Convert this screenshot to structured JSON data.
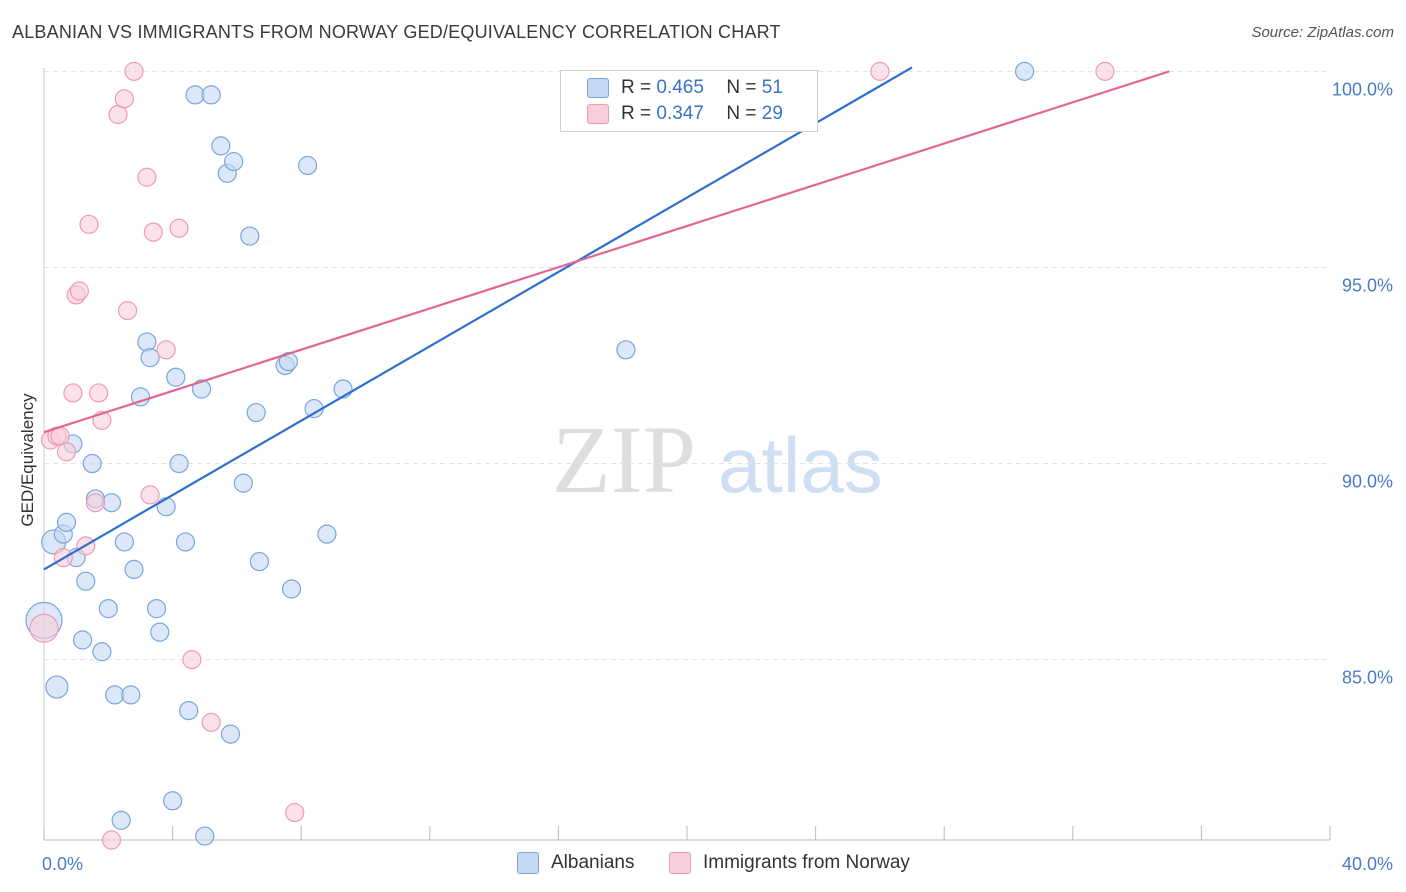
{
  "header": {
    "title": "ALBANIAN VS IMMIGRANTS FROM NORWAY GED/EQUIVALENCY CORRELATION CHART",
    "source": "Source: ZipAtlas.com"
  },
  "watermark": {
    "zip": "ZIP",
    "atlas": "atlas"
  },
  "legend": {
    "r_label": "R =",
    "n_label": "N =",
    "rows": [
      {
        "r": "0.465",
        "n": "51"
      },
      {
        "r": "0.347",
        "n": "29"
      }
    ]
  },
  "colors": {
    "blue_fill": "#c5d9f3",
    "blue_stroke": "#7aa6dd",
    "blue_line": "#2c6fcc",
    "pink_fill": "#f9cedb",
    "pink_stroke": "#ef9ab5",
    "pink_line": "#e26691",
    "grid": "#e2e2e2",
    "tick_text": "#4a7cc6"
  },
  "chart_data": {
    "type": "scatter",
    "title": "ALBANIAN VS IMMIGRANTS FROM NORWAY GED/EQUIVALENCY CORRELATION CHART",
    "xlabel": "",
    "ylabel": "GED/Equivalency",
    "xlim": [
      0,
      40
    ],
    "ylim": [
      80.4,
      100.8
    ],
    "x_tick_labels": [
      {
        "value": 0,
        "label": "0.0%"
      },
      {
        "value": 40,
        "label": "40.0%"
      }
    ],
    "y_tick_labels": [
      {
        "value": 85,
        "label": "85.0%"
      },
      {
        "value": 90,
        "label": "90.0%"
      },
      {
        "value": 95,
        "label": "95.0%"
      },
      {
        "value": 100,
        "label": "100.0%"
      }
    ],
    "y_gridlines": [
      85,
      90,
      95,
      100
    ],
    "x_minor_ticks": [
      0,
      4,
      8,
      12,
      16,
      20,
      24,
      28,
      32,
      36,
      40
    ],
    "series": [
      {
        "name": "Albanians",
        "color": "#7aa6dd",
        "points": [
          [
            0.0,
            86.0,
            18
          ],
          [
            0.3,
            88.0,
            12
          ],
          [
            0.4,
            84.3,
            11
          ],
          [
            0.6,
            88.2,
            9
          ],
          [
            0.7,
            88.5,
            9
          ],
          [
            0.9,
            90.5,
            9
          ],
          [
            1.0,
            87.6,
            9
          ],
          [
            1.2,
            85.5,
            9
          ],
          [
            1.3,
            87.0,
            9
          ],
          [
            1.5,
            90.0,
            9
          ],
          [
            1.6,
            89.1,
            9
          ],
          [
            1.8,
            85.2,
            9
          ],
          [
            2.0,
            86.3,
            9
          ],
          [
            2.1,
            89.0,
            9
          ],
          [
            2.2,
            84.1,
            9
          ],
          [
            2.4,
            80.9,
            9
          ],
          [
            2.5,
            88.0,
            9
          ],
          [
            2.7,
            84.1,
            9
          ],
          [
            2.8,
            87.3,
            9
          ],
          [
            3.0,
            91.7,
            9
          ],
          [
            3.2,
            93.1,
            9
          ],
          [
            3.3,
            92.7,
            9
          ],
          [
            3.5,
            86.3,
            9
          ],
          [
            3.6,
            85.7,
            9
          ],
          [
            3.8,
            88.9,
            9
          ],
          [
            4.0,
            81.4,
            9
          ],
          [
            4.1,
            92.2,
            9
          ],
          [
            4.2,
            90.0,
            9
          ],
          [
            4.4,
            88.0,
            9
          ],
          [
            4.5,
            83.7,
            9
          ],
          [
            4.7,
            99.4,
            9
          ],
          [
            4.9,
            91.9,
            9
          ],
          [
            5.0,
            80.5,
            9
          ],
          [
            5.2,
            99.4,
            9
          ],
          [
            5.5,
            98.1,
            9
          ],
          [
            5.7,
            97.4,
            9
          ],
          [
            5.8,
            83.1,
            9
          ],
          [
            5.9,
            97.7,
            9
          ],
          [
            6.2,
            89.5,
            9
          ],
          [
            6.4,
            95.8,
            9
          ],
          [
            6.6,
            91.3,
            9
          ],
          [
            6.7,
            87.5,
            9
          ],
          [
            7.5,
            92.5,
            9
          ],
          [
            7.6,
            92.6,
            9
          ],
          [
            7.7,
            86.8,
            9
          ],
          [
            8.2,
            97.6,
            9
          ],
          [
            8.4,
            91.4,
            9
          ],
          [
            8.8,
            88.2,
            9
          ],
          [
            9.3,
            91.9,
            9
          ],
          [
            18.1,
            92.9,
            9
          ],
          [
            30.5,
            100.0,
            9
          ]
        ]
      },
      {
        "name": "Immigrants from Norway",
        "color": "#ef9ab5",
        "points": [
          [
            0.0,
            85.8,
            14
          ],
          [
            0.2,
            90.6,
            9
          ],
          [
            0.4,
            90.7,
            9
          ],
          [
            0.5,
            90.7,
            9
          ],
          [
            0.6,
            87.6,
            9
          ],
          [
            0.7,
            90.3,
            9
          ],
          [
            0.9,
            91.8,
            9
          ],
          [
            1.0,
            94.3,
            9
          ],
          [
            1.1,
            94.4,
            9
          ],
          [
            1.3,
            87.9,
            9
          ],
          [
            1.4,
            96.1,
            9
          ],
          [
            1.6,
            89.0,
            9
          ],
          [
            1.7,
            91.8,
            9
          ],
          [
            1.8,
            91.1,
            9
          ],
          [
            2.1,
            80.4,
            9
          ],
          [
            2.3,
            98.9,
            9
          ],
          [
            2.5,
            99.3,
            9
          ],
          [
            2.6,
            93.9,
            9
          ],
          [
            2.8,
            100.0,
            9
          ],
          [
            3.2,
            97.3,
            9
          ],
          [
            3.3,
            89.2,
            9
          ],
          [
            3.4,
            95.9,
            9
          ],
          [
            3.8,
            92.9,
            9
          ],
          [
            4.2,
            96.0,
            9
          ],
          [
            4.6,
            85.0,
            9
          ],
          [
            5.2,
            83.4,
            9
          ],
          [
            7.8,
            81.1,
            9
          ],
          [
            26.0,
            100.0,
            9
          ],
          [
            33.0,
            100.0,
            9
          ]
        ]
      }
    ],
    "trend_lines": [
      {
        "series": "Albanians",
        "x": [
          0.0,
          27.0
        ],
        "y": [
          87.3,
          100.1
        ],
        "color": "#2c6fcc"
      },
      {
        "series": "Immigrants from Norway",
        "x": [
          0.0,
          35.0
        ],
        "y": [
          90.8,
          100.0
        ],
        "color": "#e26691"
      }
    ]
  },
  "bottom_legend": {
    "items": [
      {
        "label": "Albanians"
      },
      {
        "label": "Immigrants from Norway"
      }
    ]
  }
}
